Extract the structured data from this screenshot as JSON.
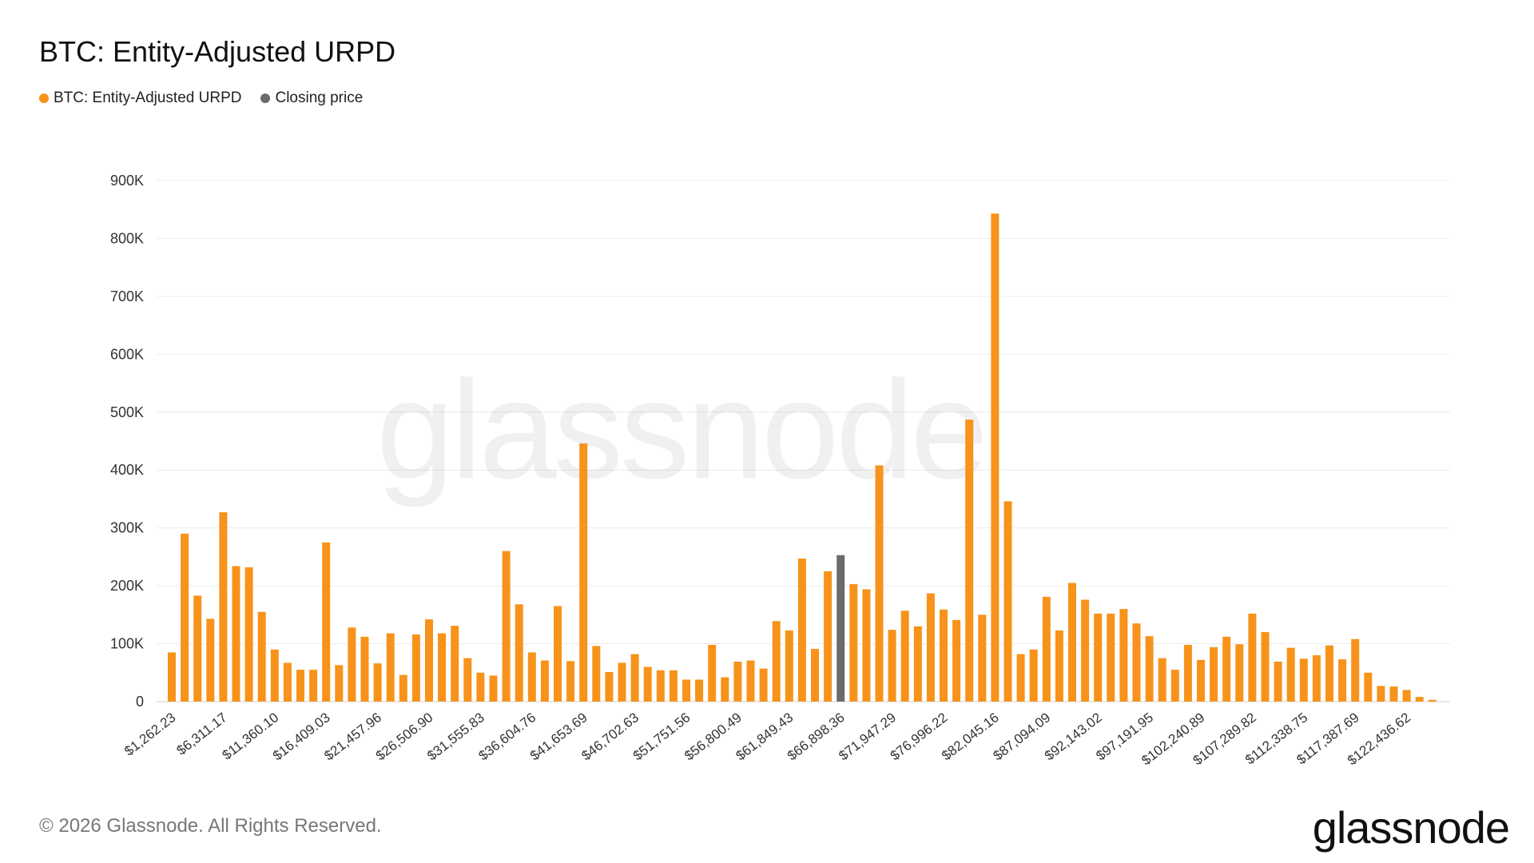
{
  "title": "BTC: Entity-Adjusted URPD",
  "legend": [
    {
      "label": "BTC: Entity-Adjusted URPD",
      "color": "#f7931a"
    },
    {
      "label": "Closing price",
      "color": "#6b6b6b"
    }
  ],
  "watermark": "glassnode",
  "footer": "© 2026 Glassnode. All Rights Reserved.",
  "brand": "glassnode",
  "colors": {
    "bar": "#f7931a",
    "closing_price": "#6b6b6b",
    "grid": "#ececec",
    "axis_text": "#333333"
  },
  "chart_data": {
    "type": "bar",
    "title": "BTC: Entity-Adjusted URPD",
    "xlabel": "",
    "ylabel": "",
    "ylim": [
      0,
      900000
    ],
    "yticks": [
      0,
      100000,
      200000,
      300000,
      400000,
      500000,
      600000,
      700000,
      800000,
      900000
    ],
    "ytick_labels": [
      "0",
      "100K",
      "200K",
      "300K",
      "400K",
      "500K",
      "600K",
      "700K",
      "800K",
      "900K"
    ],
    "xtick_labels": [
      "$1,262.23",
      "$6,311.17",
      "$11,360.10",
      "$16,409.03",
      "$21,457.96",
      "$26,506.90",
      "$31,555.83",
      "$36,604.76",
      "$41,653.69",
      "$46,702.63",
      "$51,751.56",
      "$56,800.49",
      "$61,849.43",
      "$66,898.36",
      "$71,947.29",
      "$76,996.22",
      "$82,045.16",
      "$87,094.09",
      "$92,143.02",
      "$97,191.95",
      "$102,240.89",
      "$107,289.82",
      "$112,338.75",
      "$117,387.69",
      "$122,436.62"
    ],
    "xtick_every": 4,
    "grid": true,
    "legend_position": "top-left",
    "closing_price_index": 52,
    "series": [
      {
        "name": "BTC: Entity-Adjusted URPD",
        "values": [
          85000,
          290000,
          183000,
          143000,
          327000,
          234000,
          232000,
          155000,
          90000,
          67000,
          55000,
          55000,
          275000,
          63000,
          128000,
          112000,
          66000,
          118000,
          46000,
          116000,
          142000,
          118000,
          131000,
          75000,
          50000,
          45000,
          260000,
          168000,
          85000,
          71000,
          165000,
          70000,
          446000,
          96000,
          51000,
          67000,
          82000,
          60000,
          54000,
          54000,
          38000,
          38000,
          98000,
          42000,
          69000,
          71000,
          57000,
          139000,
          123000,
          247000,
          91000,
          225000,
          253000,
          203000,
          194000,
          408000,
          124000,
          157000,
          130000,
          187000,
          159000,
          141000,
          487000,
          150000,
          843000,
          346000,
          82000,
          90000,
          181000,
          123000,
          205000,
          176000,
          152000,
          152000,
          160000,
          135000,
          113000,
          75000,
          55000,
          98000,
          72000,
          94000,
          112000,
          99000,
          152000,
          120000,
          69000,
          93000,
          74000,
          80000,
          97000,
          73000,
          108000,
          50000,
          27000,
          26000,
          20000,
          8000,
          3000
        ]
      }
    ]
  }
}
